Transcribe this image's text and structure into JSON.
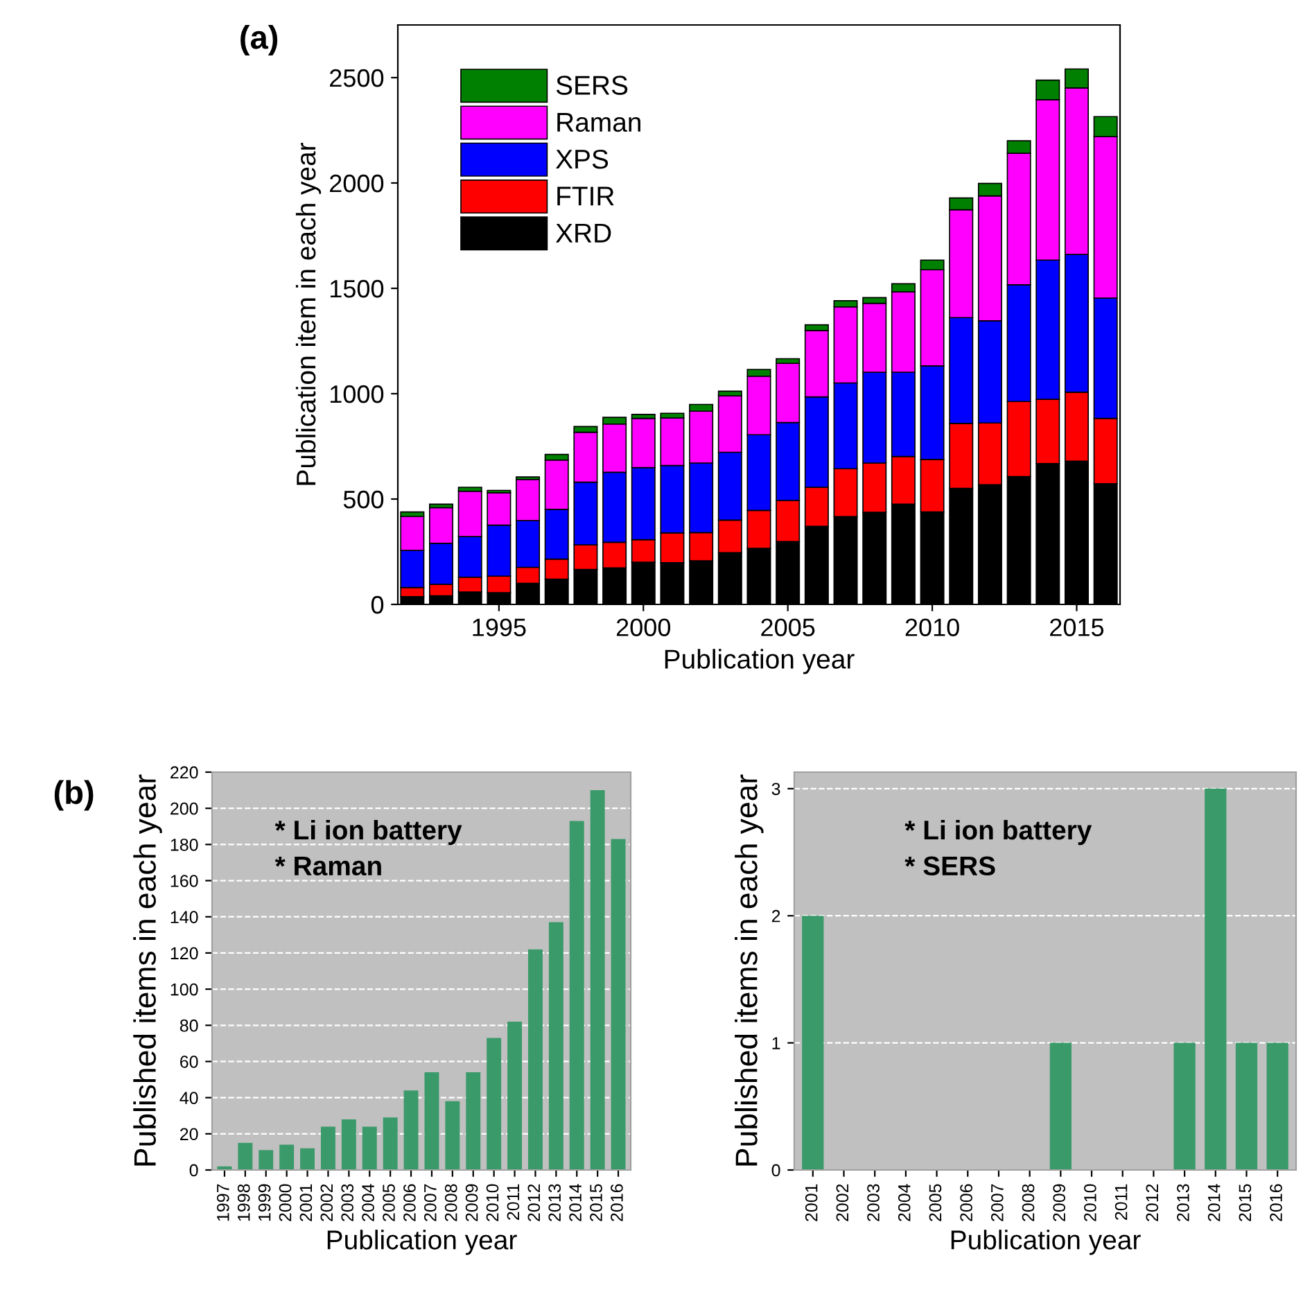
{
  "chart_data": [
    {
      "type": "bar",
      "title": "(a)",
      "stacked": true,
      "xlabel": "Publication year",
      "ylabel": "Publication item in each year",
      "x": [
        1992,
        1993,
        1994,
        1995,
        1996,
        1997,
        1998,
        1999,
        2000,
        2001,
        2002,
        2003,
        2004,
        2005,
        2006,
        2007,
        2008,
        2009,
        2010,
        2011,
        2012,
        2013,
        2014,
        2015,
        2016
      ],
      "series": [
        {
          "name": "XRD",
          "color": "#000000",
          "values": [
            37,
            41,
            59,
            56,
            100,
            120,
            166,
            173,
            200,
            198,
            207,
            246,
            266,
            298,
            371,
            417,
            437,
            476,
            439,
            551,
            568,
            607,
            668,
            680,
            573
          ]
        },
        {
          "name": "FTIR",
          "color": "#ff0000",
          "values": [
            43,
            54,
            70,
            78,
            76,
            95,
            117,
            122,
            107,
            141,
            134,
            154,
            180,
            195,
            185,
            227,
            234,
            226,
            249,
            308,
            293,
            356,
            305,
            327,
            310
          ]
        },
        {
          "name": "XPS",
          "color": "#0000ff",
          "values": [
            176,
            195,
            193,
            242,
            222,
            236,
            297,
            332,
            342,
            320,
            330,
            322,
            359,
            370,
            429,
            407,
            431,
            400,
            444,
            502,
            485,
            554,
            661,
            654,
            571
          ]
        },
        {
          "name": "Raman",
          "color": "#ff00ff",
          "values": [
            161,
            169,
            215,
            153,
            195,
            234,
            237,
            229,
            234,
            226,
            246,
            268,
            278,
            281,
            315,
            361,
            327,
            381,
            456,
            512,
            593,
            624,
            761,
            790,
            766
          ]
        },
        {
          "name": "SERS",
          "color": "#008000",
          "values": [
            22,
            17,
            19,
            12,
            12,
            27,
            27,
            32,
            19,
            22,
            32,
            22,
            32,
            22,
            27,
            29,
            27,
            39,
            46,
            56,
            59,
            59,
            93,
            90,
            95
          ]
        }
      ],
      "xlim": [
        1991.5,
        2016.5
      ],
      "xticks": [
        1995,
        2000,
        2005,
        2010,
        2015
      ],
      "ylim": [
        0,
        2750
      ],
      "yticks": [
        0,
        500,
        1000,
        1500,
        2000,
        2500
      ],
      "grid": false,
      "legend": "top left"
    },
    {
      "type": "bar",
      "title": "(b)",
      "xlabel": "Publication year",
      "ylabel": "Published items in each year",
      "color": "#3a9a6a",
      "categories": [
        "1997",
        "1998",
        "1999",
        "2000",
        "2001",
        "2002",
        "2003",
        "2004",
        "2005",
        "2006",
        "2007",
        "2008",
        "2009",
        "2010",
        "2011",
        "2012",
        "2013",
        "2014",
        "2015",
        "2016"
      ],
      "values": [
        2,
        15,
        11,
        14,
        12,
        24,
        28,
        24,
        29,
        44,
        54,
        38,
        54,
        73,
        82,
        122,
        137,
        193,
        210,
        183
      ],
      "ylim": [
        0,
        220
      ],
      "yticks": [
        0,
        20,
        40,
        60,
        80,
        100,
        120,
        140,
        160,
        180,
        200,
        220
      ],
      "grid": "y",
      "annotations": [
        "* Li ion battery",
        "* Raman"
      ]
    },
    {
      "type": "bar",
      "xlabel": "Publication year",
      "ylabel": "Published items in each year",
      "color": "#3a9a6a",
      "categories": [
        "2001",
        "2002",
        "2003",
        "2004",
        "2005",
        "2006",
        "2007",
        "2008",
        "2009",
        "2010",
        "2011",
        "2012",
        "2013",
        "2014",
        "2015",
        "2016"
      ],
      "values": [
        2,
        0,
        0,
        0,
        0,
        0,
        0,
        0,
        1,
        0,
        0,
        0,
        1,
        3,
        1,
        1
      ],
      "ylim": [
        0,
        3.13
      ],
      "yticks": [
        0,
        1,
        2,
        3
      ],
      "grid": "y",
      "annotations": [
        "* Li ion battery",
        "* SERS"
      ]
    }
  ]
}
